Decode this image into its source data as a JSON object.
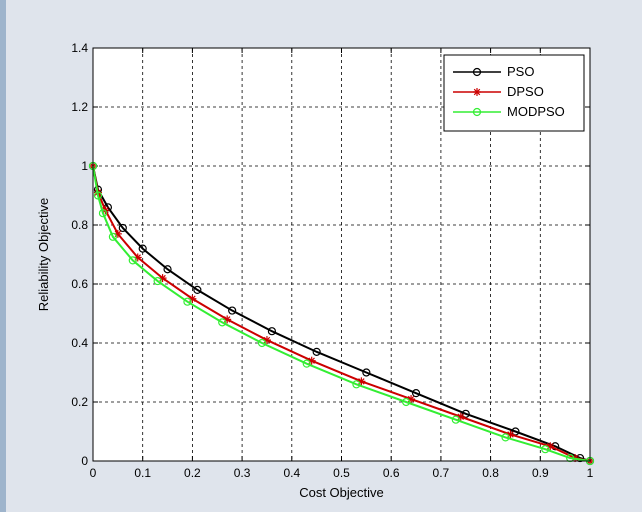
{
  "chart_data": {
    "type": "line",
    "title": "",
    "xlabel": "Cost Objective",
    "ylabel": "Reliability Objective",
    "xlim": [
      0,
      1
    ],
    "ylim": [
      0,
      1.4
    ],
    "xticks": [
      "0",
      "0.1",
      "0.2",
      "0.3",
      "0.4",
      "0.5",
      "0.6",
      "0.7",
      "0.8",
      "0.9",
      "1"
    ],
    "yticks": [
      "0",
      "0.2",
      "0.4",
      "0.6",
      "0.8",
      "1",
      "1.2",
      "1.4"
    ],
    "grid": true,
    "legend_position": "top-right",
    "series": [
      {
        "name": "PSO",
        "color": "#000000",
        "marker": "circle",
        "x": [
          0,
          0.01,
          0.03,
          0.06,
          0.1,
          0.15,
          0.21,
          0.28,
          0.36,
          0.45,
          0.55,
          0.65,
          0.75,
          0.85,
          0.93,
          0.98,
          1.0
        ],
        "y": [
          1.0,
          0.92,
          0.86,
          0.79,
          0.72,
          0.65,
          0.58,
          0.51,
          0.44,
          0.37,
          0.3,
          0.23,
          0.16,
          0.1,
          0.05,
          0.01,
          0.0
        ]
      },
      {
        "name": "DPSO",
        "color": "#cc0000",
        "marker": "asterisk",
        "x": [
          0,
          0.01,
          0.025,
          0.05,
          0.09,
          0.14,
          0.2,
          0.27,
          0.35,
          0.44,
          0.54,
          0.64,
          0.74,
          0.84,
          0.92,
          0.97,
          1.0
        ],
        "y": [
          1.0,
          0.91,
          0.85,
          0.77,
          0.69,
          0.62,
          0.55,
          0.48,
          0.41,
          0.34,
          0.27,
          0.21,
          0.15,
          0.09,
          0.05,
          0.01,
          0.0
        ]
      },
      {
        "name": "MODPSO",
        "color": "#33ee33",
        "marker": "circle",
        "x": [
          0,
          0.01,
          0.02,
          0.04,
          0.08,
          0.13,
          0.19,
          0.26,
          0.34,
          0.43,
          0.53,
          0.63,
          0.73,
          0.83,
          0.91,
          0.96,
          1.0
        ],
        "y": [
          1.0,
          0.9,
          0.84,
          0.76,
          0.68,
          0.61,
          0.54,
          0.47,
          0.4,
          0.33,
          0.26,
          0.2,
          0.14,
          0.08,
          0.04,
          0.01,
          0.0
        ]
      }
    ]
  }
}
